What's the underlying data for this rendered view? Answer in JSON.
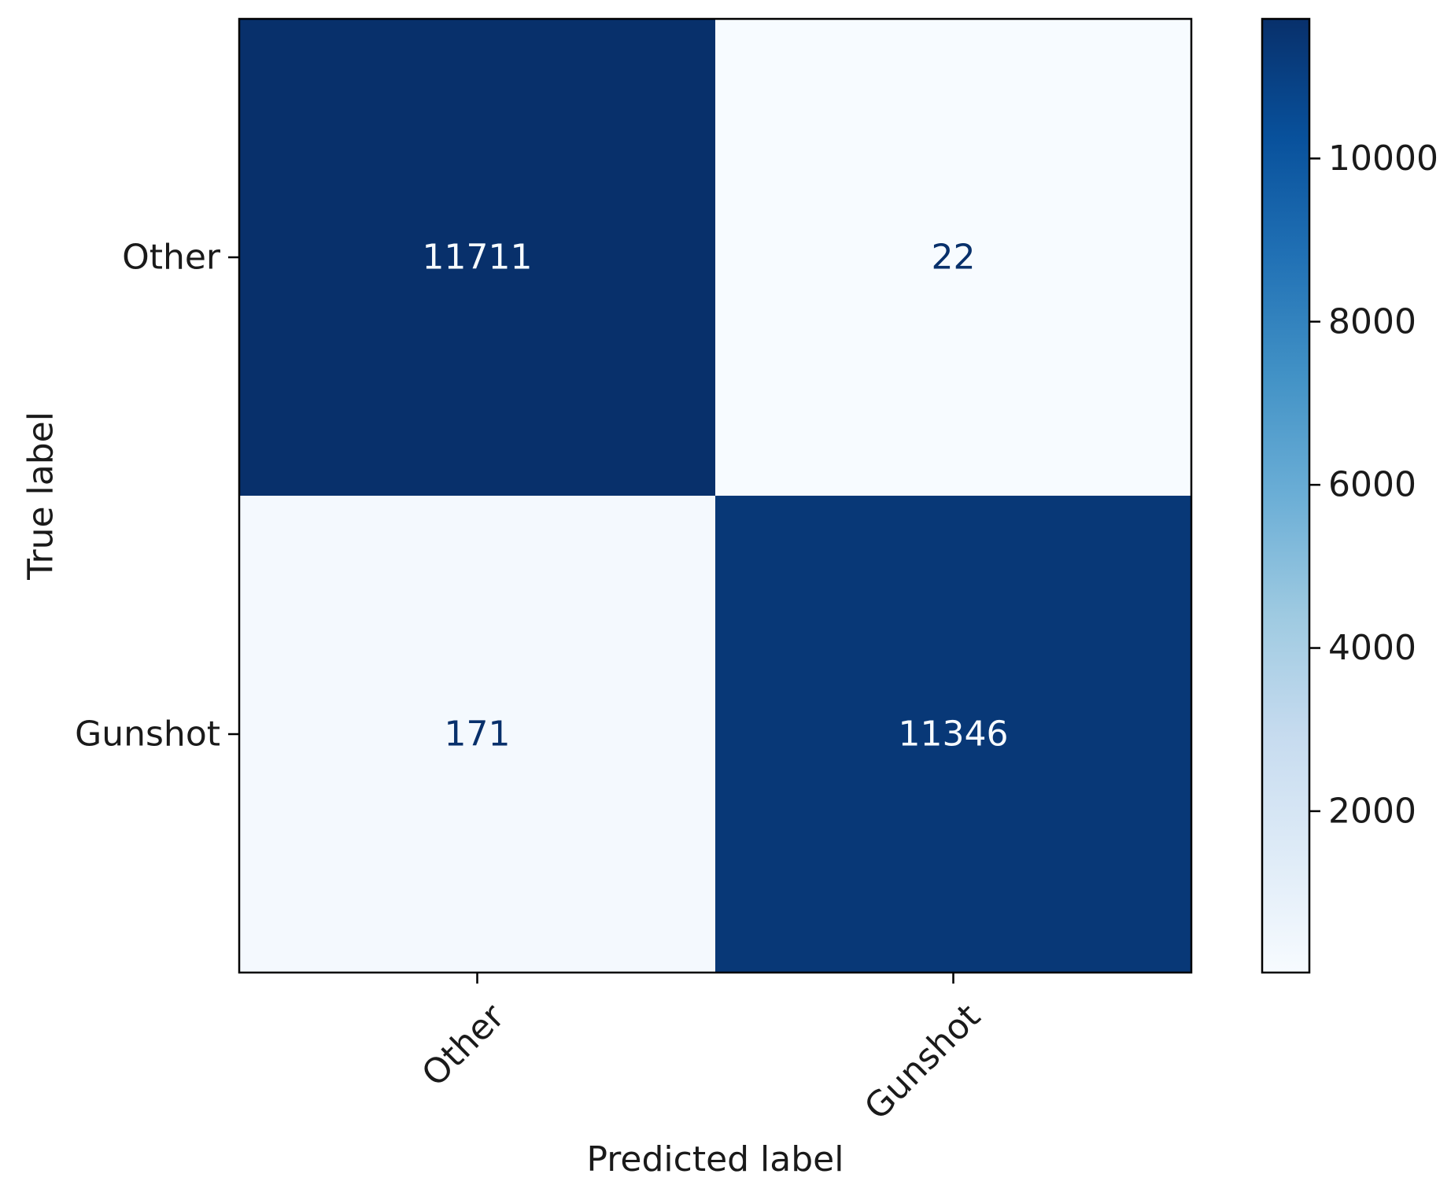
{
  "chart_data": {
    "type": "heatmap",
    "title": "",
    "xlabel": "Predicted label",
    "ylabel": "True label",
    "x_categories": [
      "Other",
      "Gunshot"
    ],
    "y_categories": [
      "Other",
      "Gunshot"
    ],
    "matrix": [
      [
        11711,
        22
      ],
      [
        171,
        11346
      ]
    ],
    "colormap": "Blues",
    "color_range": [
      22,
      11711
    ],
    "colorbar_ticks": [
      "2000",
      "4000",
      "6000",
      "8000",
      "10000"
    ],
    "colors": {
      "dark": "#08306b",
      "light": "#f7fbff",
      "text_on_dark": "#f7fbff",
      "text_on_light": "#08306b"
    }
  }
}
